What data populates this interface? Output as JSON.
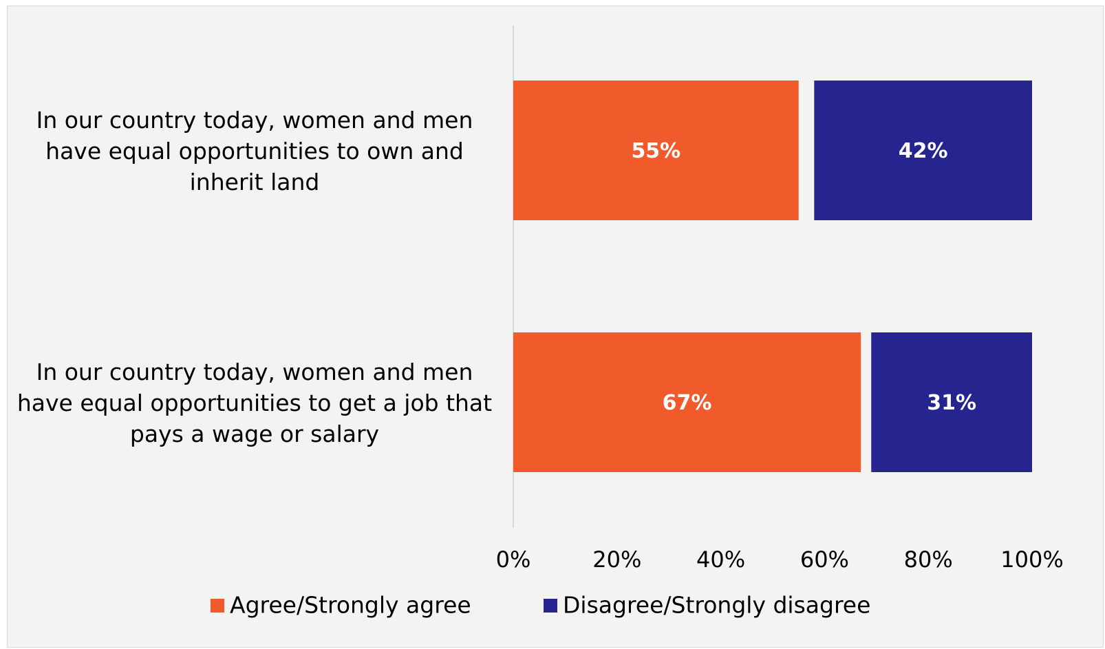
{
  "chart_data": {
    "type": "hbar",
    "categories": [
      "In our country today, women and men have equal opportunities to own and inherit land",
      "In our country today, women and men have equal opportunities to get a job that pays a wage or salary"
    ],
    "series": [
      {
        "name": "Agree/Strongly agree",
        "color": "#f15a2b",
        "values": [
          55,
          67
        ],
        "value_labels": [
          "55%",
          "67%"
        ]
      },
      {
        "name": "Disagree/Strongly disagree",
        "color": "#26248f",
        "values": [
          42,
          31
        ],
        "value_labels": [
          "42%",
          "31%"
        ]
      }
    ],
    "xlim": [
      0,
      100
    ],
    "xticks": [
      {
        "value": 0,
        "label": "0%"
      },
      {
        "value": 20,
        "label": "20%"
      },
      {
        "value": 40,
        "label": "40%"
      },
      {
        "value": 60,
        "label": "60%"
      },
      {
        "value": 80,
        "label": "80%"
      },
      {
        "value": 100,
        "label": "100%"
      }
    ],
    "legend": "bottom"
  }
}
